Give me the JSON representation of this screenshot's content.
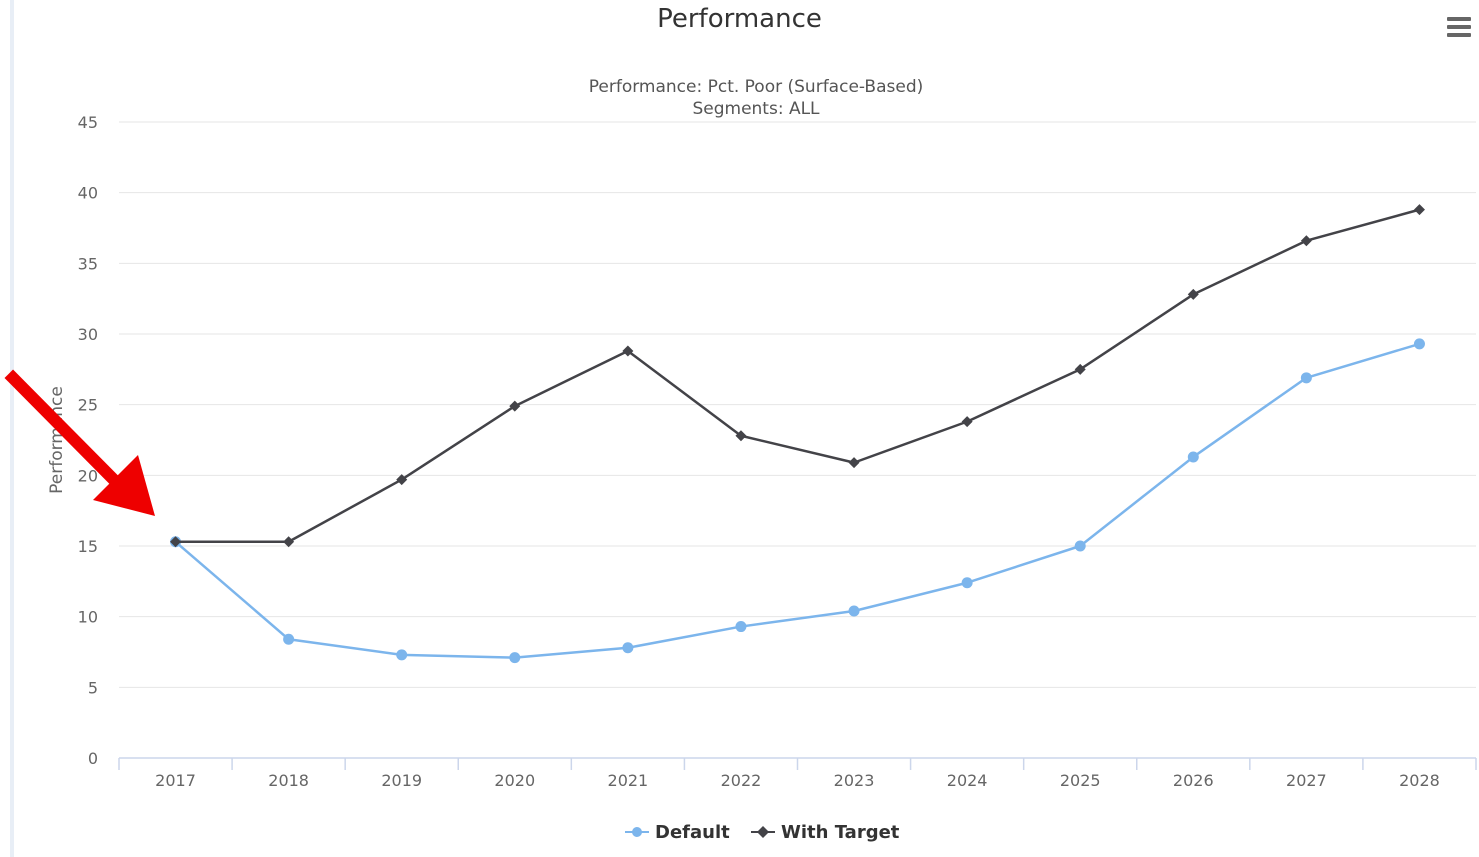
{
  "title": "Performance",
  "chart_data": {
    "type": "line",
    "subtitle_lines": [
      "Performance: Pct. Poor (Surface-Based)",
      "Segments: ALL"
    ],
    "ylabel": "Performance",
    "xlabel": "",
    "ylim": [
      0,
      45
    ],
    "yticks": [
      0,
      5,
      10,
      15,
      20,
      25,
      30,
      35,
      40,
      45
    ],
    "grid": true,
    "legend_position": "bottom-center",
    "x": [
      "2017",
      "2018",
      "2019",
      "2020",
      "2021",
      "2022",
      "2023",
      "2024",
      "2025",
      "2026",
      "2027",
      "2028"
    ],
    "series": [
      {
        "name": "Default",
        "color": "#7cb5ec",
        "marker": "circle",
        "values": [
          15.3,
          8.4,
          7.3,
          7.1,
          7.8,
          9.3,
          10.4,
          12.4,
          15.0,
          21.3,
          26.9,
          29.3
        ]
      },
      {
        "name": "With Target",
        "color": "#434348",
        "marker": "diamond",
        "values": [
          15.3,
          15.3,
          19.7,
          24.9,
          28.8,
          22.8,
          20.9,
          23.8,
          27.5,
          32.8,
          36.6,
          38.8
        ]
      }
    ]
  },
  "annotation": {
    "type": "arrow",
    "color": "#ee0000"
  },
  "menu": {
    "icon": "hamburger-menu-icon"
  }
}
